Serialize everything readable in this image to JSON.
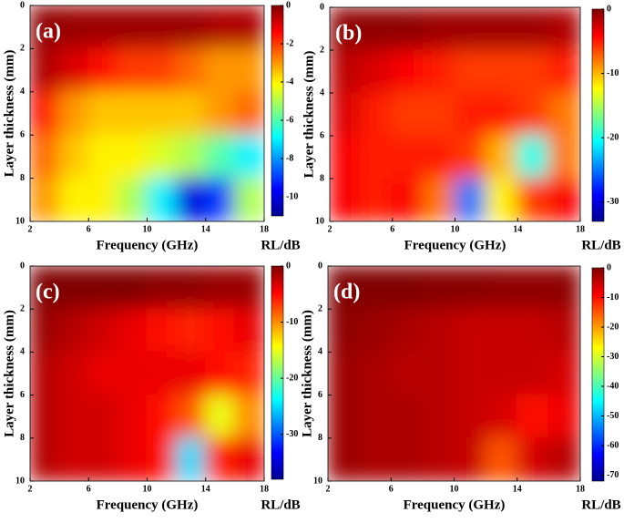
{
  "chart_data": [
    {
      "type": "heatmap",
      "label": "(a)",
      "x_label": "Frequency (GHz)",
      "y_label": "Layer thickness (mm)",
      "colorbar_label": "RL/dB",
      "x": [
        3,
        5,
        7,
        9,
        11,
        13,
        15,
        17
      ],
      "y": [
        1,
        3,
        5,
        7,
        9
      ],
      "values": [
        [
          -0.2,
          -0.3,
          -0.3,
          -0.3,
          -0.3,
          -0.3,
          -0.5,
          -0.5
        ],
        [
          -0.5,
          -1,
          -1.5,
          -2,
          -2,
          -2.5,
          -3,
          -3
        ],
        [
          -1.5,
          -3,
          -3.5,
          -3.5,
          -3.5,
          -3.5,
          -3,
          -2.5
        ],
        [
          -2.5,
          -3.5,
          -4,
          -4,
          -4.5,
          -5,
          -6,
          -7
        ],
        [
          -3,
          -4,
          -4,
          -5,
          -7,
          -10,
          -9,
          -5
        ]
      ],
      "xlim": [
        2,
        18
      ],
      "xticks": [
        2,
        6,
        10,
        14,
        18
      ],
      "ylim": [
        0,
        10
      ],
      "yticks": [
        0,
        2,
        4,
        6,
        8,
        10
      ],
      "y_inverted": true,
      "clim": [
        -11,
        0
      ],
      "cticks": [
        0,
        -2,
        -4,
        -6,
        -8,
        -10
      ],
      "colormap": "jet"
    },
    {
      "type": "heatmap",
      "label": "(b)",
      "x_label": "Frequency (GHz)",
      "y_label": "Layer thickness (mm)",
      "colorbar_label": "RL/dB",
      "x": [
        3,
        5,
        7,
        9,
        11,
        13,
        15,
        17
      ],
      "y": [
        1,
        3,
        5,
        7,
        9
      ],
      "values": [
        [
          -0.5,
          -0.5,
          -0.5,
          -1,
          -1,
          -1,
          -1,
          -1.5
        ],
        [
          -2,
          -3,
          -4,
          -5,
          -6,
          -6,
          -6,
          -5
        ],
        [
          -3,
          -5,
          -6,
          -6,
          -5,
          -5,
          -6,
          -8
        ],
        [
          -4,
          -5,
          -5,
          -5,
          -6,
          -10,
          -20,
          -8
        ],
        [
          -4,
          -5,
          -4,
          -8,
          -25,
          -12,
          -6,
          -4
        ]
      ],
      "xlim": [
        2,
        18
      ],
      "xticks": [
        2,
        6,
        10,
        14,
        18
      ],
      "ylim": [
        0,
        10
      ],
      "yticks": [
        0,
        2,
        4,
        6,
        8,
        10
      ],
      "y_inverted": true,
      "clim": [
        -33,
        0
      ],
      "cticks": [
        0,
        -10,
        -20,
        -30
      ],
      "colormap": "jet"
    },
    {
      "type": "heatmap",
      "label": "(c)",
      "x_label": "Frequency (GHz)",
      "y_label": "Layer thickness (mm)",
      "colorbar_label": "RL/dB",
      "x": [
        3,
        5,
        7,
        9,
        11,
        13,
        15,
        17
      ],
      "y": [
        1,
        3,
        5,
        7,
        9
      ],
      "values": [
        [
          0,
          0,
          0,
          0,
          -0.5,
          -0.5,
          -1,
          -1
        ],
        [
          -1,
          -2,
          -3,
          -4,
          -5,
          -6,
          -5,
          -4
        ],
        [
          -2,
          -3,
          -4,
          -4,
          -4,
          -4,
          -5,
          -6
        ],
        [
          -2,
          -3,
          -3,
          -4,
          -5,
          -8,
          -15,
          -10
        ],
        [
          -2,
          -3,
          -3,
          -4,
          -5,
          -25,
          -6,
          -4
        ]
      ],
      "xlim": [
        2,
        18
      ],
      "xticks": [
        2,
        6,
        10,
        14,
        18
      ],
      "ylim": [
        0,
        10
      ],
      "yticks": [
        0,
        2,
        4,
        6,
        8,
        10
      ],
      "y_inverted": true,
      "clim": [
        -38,
        0
      ],
      "cticks": [
        0,
        -10,
        -20,
        -30
      ],
      "colormap": "jet"
    },
    {
      "type": "heatmap",
      "label": "(d)",
      "x_label": "Frequency (GHz)",
      "y_label": "Layer thickness (mm)",
      "colorbar_label": "RL/dB",
      "x": [
        3,
        5,
        7,
        9,
        11,
        13,
        15,
        17
      ],
      "y": [
        1,
        3,
        5,
        7,
        9
      ],
      "values": [
        [
          0,
          0,
          0,
          -0.5,
          -0.5,
          -1,
          -1,
          -1
        ],
        [
          -1,
          -2,
          -3,
          -4,
          -5,
          -5,
          -5,
          -4
        ],
        [
          -2,
          -3,
          -4,
          -4,
          -5,
          -5,
          -5,
          -6
        ],
        [
          -2,
          -3,
          -3,
          -4,
          -5,
          -6,
          -10,
          -8
        ],
        [
          -2,
          -3,
          -3,
          -4,
          -5,
          -15,
          -6,
          -4
        ]
      ],
      "xlim": [
        2,
        18
      ],
      "xticks": [
        2,
        6,
        10,
        14,
        18
      ],
      "ylim": [
        0,
        10
      ],
      "yticks": [
        0,
        2,
        4,
        6,
        8,
        10
      ],
      "y_inverted": true,
      "clim": [
        -72,
        0
      ],
      "cticks": [
        0,
        -10,
        -20,
        -30,
        -40,
        -50,
        -60,
        -70
      ],
      "colormap": "jet"
    }
  ]
}
